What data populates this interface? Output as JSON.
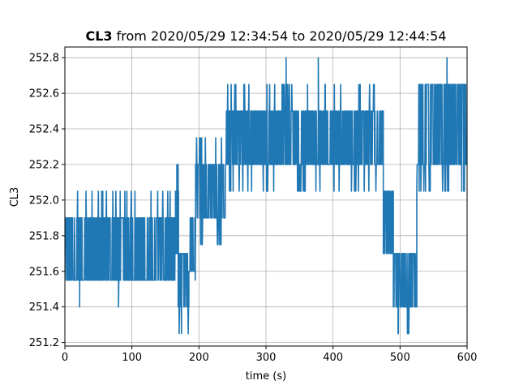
{
  "chart_data": {
    "type": "line",
    "title": {
      "prefix": "CL3",
      "rest": " from 2020/05/29 12:34:54 to 2020/05/29 12:44:54"
    },
    "xlabel": "time (s)",
    "ylabel": "CL3",
    "xlim": [
      0,
      600
    ],
    "ylim": [
      251.18,
      252.86
    ],
    "grid": true,
    "x_ticks": [
      0,
      100,
      200,
      300,
      400,
      500,
      600
    ],
    "y_ticks": [
      251.2,
      251.4,
      251.6,
      251.8,
      252.0,
      252.2,
      252.4,
      252.6,
      252.8
    ],
    "x_tick_labels": [
      "0",
      "100",
      "200",
      "300",
      "400",
      "500",
      "600"
    ],
    "y_tick_labels": [
      "251.2",
      "251.4",
      "251.6",
      "251.8",
      "252.0",
      "252.2",
      "252.4",
      "252.6",
      "252.8"
    ],
    "series": [
      {
        "color": "#1f77b4",
        "segments": [
          {
            "x": [
              0,
              165
            ],
            "low": 251.55,
            "high": 251.9,
            "spike_high": 252.05,
            "spike_low": 251.55
          },
          {
            "x": [
              165,
              170
            ],
            "low": 251.7,
            "high": 252.05,
            "spike_high": 252.2,
            "spike_low": 251.7
          },
          {
            "x": [
              168,
              185
            ],
            "low": 251.4,
            "high": 251.7,
            "spike_high": 251.7,
            "spike_low": 251.25
          },
          {
            "x": [
              185,
              195
            ],
            "low": 251.6,
            "high": 251.9,
            "spike_high": 252.05,
            "spike_low": 251.55
          },
          {
            "x": [
              195,
              240
            ],
            "low": 251.9,
            "high": 252.2,
            "spike_high": 252.35,
            "spike_low": 251.75
          },
          {
            "x": [
              240,
              475
            ],
            "low": 252.2,
            "high": 252.5,
            "spike_high": 252.65,
            "spike_low": 252.05
          },
          {
            "x": [
              475,
              490
            ],
            "low": 251.7,
            "high": 252.05,
            "spike_high": 252.05,
            "spike_low": 251.7
          },
          {
            "x": [
              490,
              525
            ],
            "low": 251.4,
            "high": 251.7,
            "spike_high": 251.7,
            "spike_low": 251.25
          },
          {
            "x": [
              525,
              600
            ],
            "low": 252.2,
            "high": 252.65,
            "spike_high": 252.65,
            "spike_low": 252.05
          }
        ],
        "peaks": [
          {
            "x": 330,
            "y": 252.8
          },
          {
            "x": 378,
            "y": 252.8
          },
          {
            "x": 570,
            "y": 252.8
          },
          {
            "x": 22,
            "y": 251.4
          },
          {
            "x": 80,
            "y": 251.4
          },
          {
            "x": 233,
            "y": 251.75
          },
          {
            "x": 434,
            "y": 252.05
          },
          {
            "x": 595,
            "y": 252.05
          },
          {
            "x": 167,
            "y": 252.2
          },
          {
            "x": 497,
            "y": 251.25
          },
          {
            "x": 513,
            "y": 251.25
          }
        ]
      }
    ]
  }
}
